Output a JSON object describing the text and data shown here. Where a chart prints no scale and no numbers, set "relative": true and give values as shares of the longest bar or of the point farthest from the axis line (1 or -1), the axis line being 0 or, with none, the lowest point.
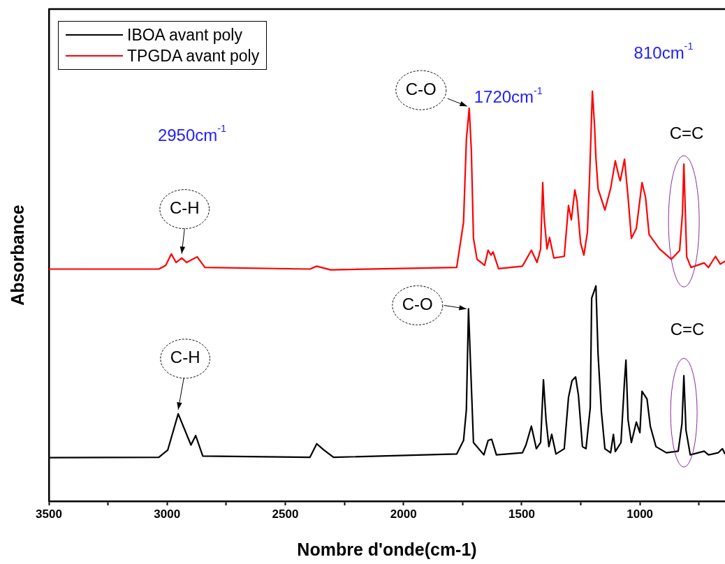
{
  "chart_data": {
    "type": "line",
    "xlabel": "Nombre d'onde(cm-1)",
    "ylabel": "Absorbance",
    "relative": true,
    "grid": false,
    "legend": "top left",
    "marker": "none",
    "line_style": "solid",
    "xlim": [
      3500,
      640
    ],
    "xticks": [
      3500,
      {
        "value": 3250,
        "label": null
      },
      3000,
      {
        "value": 2750,
        "label": null
      },
      2500,
      {
        "value": 2250,
        "label": null
      },
      2000,
      {
        "value": 1750,
        "label": null
      },
      1500,
      {
        "value": 1250,
        "label": null
      },
      1000,
      {
        "value": 750,
        "label": null
      }
    ],
    "series": [
      {
        "name": "IBOA avant poly",
        "color": "#000000",
        "x": [
          3500,
          3035,
          2997,
          2953,
          2899,
          2879,
          2849,
          2396,
          2367,
          2337,
          2296,
          1775,
          1746,
          1734,
          1725,
          1716,
          1704,
          1660,
          1642,
          1627,
          1607,
          1497,
          1482,
          1459,
          1438,
          1420,
          1408,
          1397,
          1385,
          1373,
          1355,
          1320,
          1302,
          1287,
          1272,
          1260,
          1243,
          1228,
          1210,
          1204,
          1186,
          1177,
          1163,
          1148,
          1124,
          1112,
          1104,
          1080,
          1065,
          1059,
          1050,
          1036,
          1015,
          1000,
          991,
          970,
          956,
          932,
          888,
          838,
          822,
          814,
          805,
          787,
          728,
          710,
          669,
          651,
          640
        ],
        "values": [
          0.106,
          0.107,
          0.125,
          0.213,
          0.137,
          0.16,
          0.11,
          0.107,
          0.14,
          0.125,
          0.107,
          0.115,
          0.148,
          0.223,
          0.469,
          0.329,
          0.143,
          0.113,
          0.148,
          0.151,
          0.113,
          0.118,
          0.137,
          0.183,
          0.128,
          0.143,
          0.296,
          0.198,
          0.133,
          0.163,
          0.115,
          0.128,
          0.253,
          0.294,
          0.303,
          0.258,
          0.133,
          0.128,
          0.228,
          0.495,
          0.525,
          0.359,
          0.219,
          0.128,
          0.118,
          0.163,
          0.121,
          0.143,
          0.294,
          0.344,
          0.198,
          0.143,
          0.193,
          0.167,
          0.268,
          0.249,
          0.183,
          0.133,
          0.118,
          0.122,
          0.189,
          0.306,
          0.173,
          0.113,
          0.122,
          0.113,
          0.118,
          0.128,
          0.115
        ]
      },
      {
        "name": "TPGDA avant poly",
        "color": "#ff0000",
        "x": [
          3500,
          3035,
          3006,
          2982,
          2962,
          2938,
          2917,
          2873,
          2840,
          2396,
          2367,
          2308,
          1775,
          1746,
          1734,
          1722,
          1713,
          1704,
          1689,
          1657,
          1642,
          1630,
          1621,
          1598,
          1497,
          1459,
          1435,
          1420,
          1411,
          1405,
          1393,
          1382,
          1364,
          1320,
          1302,
          1290,
          1275,
          1266,
          1251,
          1237,
          1222,
          1213,
          1201,
          1192,
          1186,
          1177,
          1148,
          1124,
          1104,
          1089,
          1083,
          1065,
          1050,
          1036,
          1015,
          991,
          976,
          961,
          917,
          867,
          832,
          820,
          814,
          802,
          784,
          728,
          710,
          680,
          660,
          640
        ],
        "values": [
          0.566,
          0.566,
          0.575,
          0.603,
          0.582,
          0.593,
          0.582,
          0.596,
          0.57,
          0.566,
          0.573,
          0.564,
          0.57,
          0.68,
          0.882,
          0.958,
          0.857,
          0.641,
          0.59,
          0.575,
          0.612,
          0.6,
          0.608,
          0.567,
          0.573,
          0.612,
          0.582,
          0.615,
          0.777,
          0.691,
          0.615,
          0.643,
          0.593,
          0.597,
          0.721,
          0.686,
          0.759,
          0.732,
          0.63,
          0.6,
          0.656,
          0.786,
          1,
          0.917,
          0.837,
          0.762,
          0.71,
          0.762,
          0.83,
          0.792,
          0.781,
          0.834,
          0.741,
          0.641,
          0.665,
          0.777,
          0.741,
          0.65,
          0.615,
          0.59,
          0.611,
          0.701,
          0.822,
          0.596,
          0.57,
          0.581,
          0.57,
          0.597,
          0.578,
          0.585
        ]
      }
    ],
    "annotations": [
      "2950cm$^{-1}$",
      {
        "text": "C-H",
        "x": 2938,
        "y": 0.593
      },
      {
        "text": "1720cm$^{-1}$",
        "x": 1722,
        "y": 0.958
      },
      {
        "text": "C-O",
        "x": 1722,
        "y": 0.958
      },
      "810cm$^{-1}$",
      {
        "text": "C=C",
        "x": 814,
        "y": 0.822
      },
      {
        "text": "C-O",
        "x": 1725,
        "y": 0.469
      },
      {
        "text": "C-H",
        "x": 2953,
        "y": 0.213
      },
      {
        "text": "C=C",
        "x": 814,
        "y": 0.306
      }
    ]
  }
}
